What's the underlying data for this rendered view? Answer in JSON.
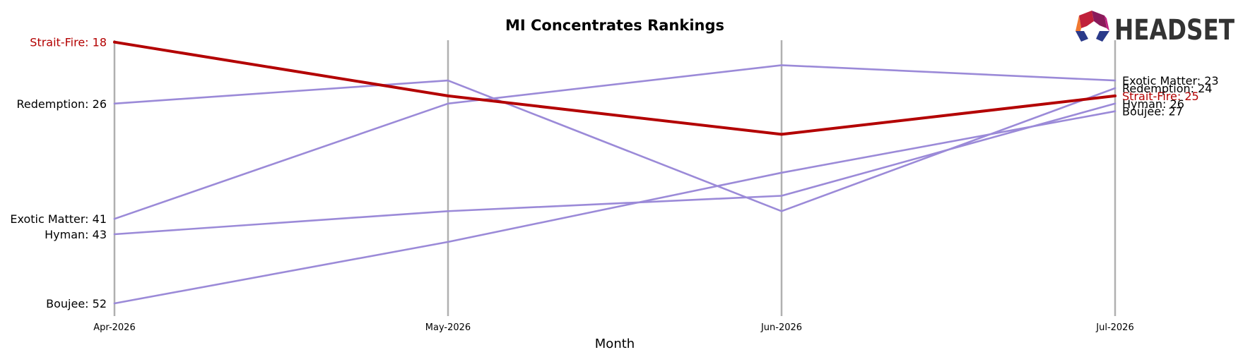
{
  "chart_data": {
    "type": "line",
    "title": "MI Concentrates Rankings",
    "xlabel": "Month",
    "ylabel": "",
    "categories": [
      "Apr-2026",
      "May-2026",
      "Jun-2026",
      "Jul-2026"
    ],
    "ylim": [
      55,
      15
    ],
    "y_inverted": true,
    "grid": "vertical lines at each month",
    "series": [
      {
        "name": "Strait-Fire",
        "values": [
          18,
          25,
          30,
          25
        ],
        "color": "#b30000",
        "highlight": true,
        "start_label": "Strait-Fire: 18",
        "end_label": "Strait-Fire: 25"
      },
      {
        "name": "Redemption",
        "values": [
          26,
          23,
          40,
          24
        ],
        "color": "#9b8ad8",
        "highlight": false,
        "start_label": "Redemption: 26",
        "end_label": "Redemption: 24"
      },
      {
        "name": "Exotic Matter",
        "values": [
          41,
          26,
          21,
          23
        ],
        "color": "#9b8ad8",
        "highlight": false,
        "start_label": "Exotic Matter: 41",
        "end_label": "Exotic Matter: 23"
      },
      {
        "name": "Hyman",
        "values": [
          43,
          40,
          38,
          26
        ],
        "color": "#9b8ad8",
        "highlight": false,
        "start_label": "Hyman: 43",
        "end_label": "Hyman: 26"
      },
      {
        "name": "Boujee",
        "values": [
          52,
          44,
          35,
          27
        ],
        "color": "#9b8ad8",
        "highlight": false,
        "start_label": "Boujee: 52",
        "end_label": "Boujee: 27"
      }
    ]
  },
  "logo": {
    "text": "HEADSET",
    "icon": "headset-hexagon-logo-icon"
  },
  "colors": {
    "highlight": "#b30000",
    "other": "#9b8ad8",
    "gridline": "#b0b0b0"
  }
}
